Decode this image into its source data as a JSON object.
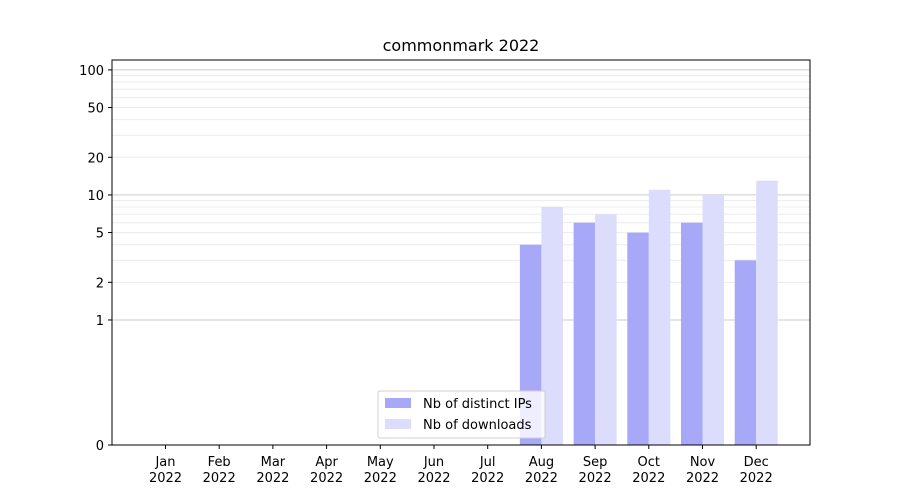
{
  "chart_data": {
    "type": "bar",
    "title": "commonmark 2022",
    "xlabel": "",
    "ylabel": "",
    "yscale": "symlog",
    "ylim": [
      0,
      120
    ],
    "yticks": [
      0,
      1,
      2,
      5,
      10,
      20,
      50,
      100
    ],
    "categories": [
      [
        "Jan",
        "2022"
      ],
      [
        "Feb",
        "2022"
      ],
      [
        "Mar",
        "2022"
      ],
      [
        "Apr",
        "2022"
      ],
      [
        "May",
        "2022"
      ],
      [
        "Jun",
        "2022"
      ],
      [
        "Jul",
        "2022"
      ],
      [
        "Aug",
        "2022"
      ],
      [
        "Sep",
        "2022"
      ],
      [
        "Oct",
        "2022"
      ],
      [
        "Nov",
        "2022"
      ],
      [
        "Dec",
        "2022"
      ]
    ],
    "series": [
      {
        "name": "Nb of distinct IPs",
        "color": "#a8a8f8",
        "values": [
          0,
          0,
          0,
          0,
          0,
          0,
          0,
          4,
          6,
          5,
          6,
          3
        ]
      },
      {
        "name": "Nb of downloads",
        "color": "#dcdcfc",
        "values": [
          0,
          0,
          0,
          0,
          0,
          0,
          0,
          8,
          7,
          11,
          10,
          13
        ]
      }
    ],
    "legend": "bottom-center",
    "grid": true
  }
}
